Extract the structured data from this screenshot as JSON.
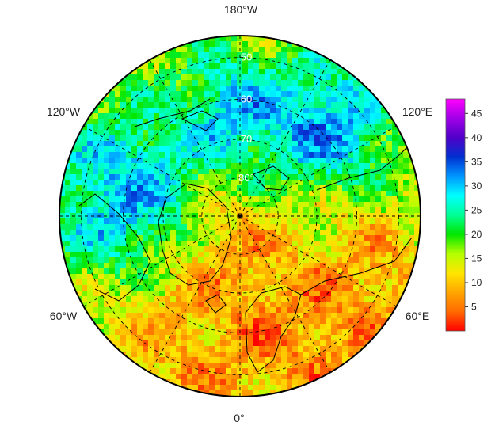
{
  "map": {
    "projection": "north-polar-stereographic",
    "longitude_labels": [
      {
        "text": "180°W",
        "lon": 180
      },
      {
        "text": "120°E",
        "lon": 120
      },
      {
        "text": "60°E",
        "lon": 60
      },
      {
        "text": "0°",
        "lon": 0
      },
      {
        "text": "60°W",
        "lon": -60
      },
      {
        "text": "120°W",
        "lon": -120
      }
    ],
    "latitude_labels": [
      {
        "text": "50",
        "lat": 50
      },
      {
        "text": "60",
        "lat": 60
      },
      {
        "text": "70",
        "lat": 70
      },
      {
        "text": "80°",
        "lat": 80
      }
    ],
    "graticule_latitudes": [
      50,
      60,
      70,
      80
    ],
    "graticule_meridians": [
      0,
      30,
      60,
      90,
      120,
      150,
      180,
      210,
      240,
      270,
      300,
      330
    ],
    "outer_latitude": 45,
    "field_features": [
      {
        "region": "greenland-ice-sheet",
        "value": 3
      },
      {
        "region": "scandinavia",
        "value": 3
      },
      {
        "region": "western-siberia",
        "value": 3
      },
      {
        "region": "north-atlantic",
        "value": 5
      },
      {
        "region": "canadian-arctic",
        "value": 38
      },
      {
        "region": "east-siberian-sea",
        "value": 40
      },
      {
        "region": "chukchi-sea",
        "value": 37
      },
      {
        "region": "central-arctic",
        "value": 18
      }
    ]
  },
  "colorbar": {
    "min": 0,
    "max": 48,
    "ticks": [
      {
        "text": "45",
        "value": 45
      },
      {
        "text": "40",
        "value": 40
      },
      {
        "text": "35",
        "value": 35
      },
      {
        "text": "30",
        "value": 30
      },
      {
        "text": "25",
        "value": 25
      },
      {
        "text": "20",
        "value": 20
      },
      {
        "text": "15",
        "value": 15
      },
      {
        "text": "10",
        "value": 10
      },
      {
        "text": "5",
        "value": 5
      }
    ],
    "colors": [
      "#ff0000",
      "#ff6a00",
      "#ffa600",
      "#ffe600",
      "#b4ff00",
      "#00e600",
      "#00ff96",
      "#00ffff",
      "#0096ff",
      "#0030d0",
      "#5000c8",
      "#a000e6",
      "#ff00ff"
    ]
  }
}
